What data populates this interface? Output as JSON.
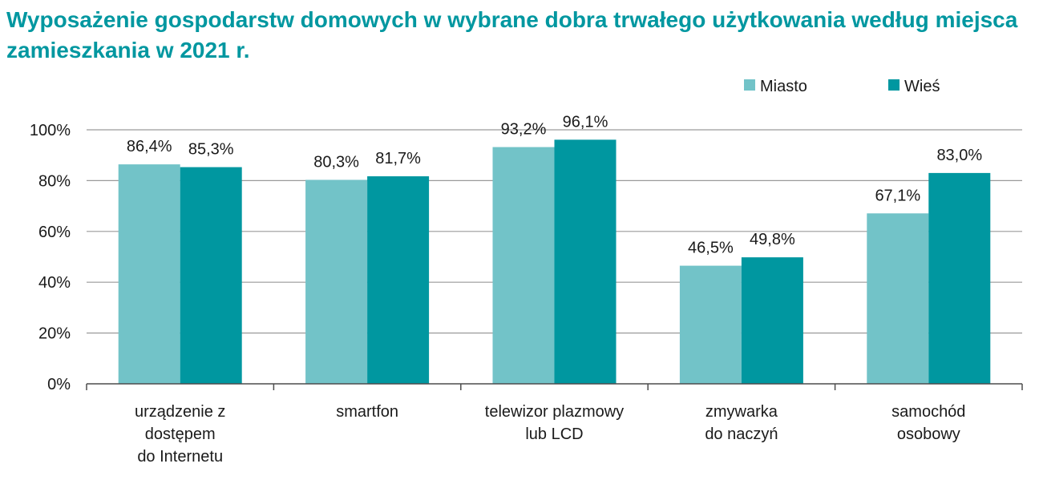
{
  "title": {
    "line1": "Wyposażenie gospodarstw domowych w wybrane dobra trwałego użytkowania według miejsca",
    "line2": "zamieszkania w 2021 r."
  },
  "colors": {
    "title": "#0097a0",
    "grid": "#9a9a9a",
    "axis": "#4d4d4d"
  },
  "chart_data": {
    "type": "bar",
    "title": "Wyposażenie gospodarstw domowych w wybrane dobra trwałego użytkowania według miejsca zamieszkania w 2021 r.",
    "categories": [
      [
        "urządzenie z",
        "dostępem",
        "do Internetu"
      ],
      [
        "smartfon"
      ],
      [
        "telewizor plazmowy",
        "lub LCD"
      ],
      [
        "zmywarka",
        "do naczyń"
      ],
      [
        "samochód",
        "osobowy"
      ]
    ],
    "series": [
      {
        "name": "Miasto",
        "color": "#72c3c8",
        "values": [
          86.4,
          80.3,
          93.2,
          46.5,
          67.1
        ],
        "labels": [
          "86,4%",
          "80,3%",
          "93,2%",
          "46,5%",
          "67,1%"
        ]
      },
      {
        "name": "Wieś",
        "color": "#0097a0",
        "values": [
          85.3,
          81.7,
          96.1,
          49.8,
          83.0
        ],
        "labels": [
          "85,3%",
          "81,7%",
          "96,1%",
          "49,8%",
          "83,0%"
        ]
      }
    ],
    "ylim": [
      0,
      100
    ],
    "yticks": [
      "0%",
      "20%",
      "40%",
      "60%",
      "80%",
      "100%"
    ],
    "ytick_values": [
      0,
      20,
      40,
      60,
      80,
      100
    ],
    "grid": true,
    "legend": "top-right"
  }
}
